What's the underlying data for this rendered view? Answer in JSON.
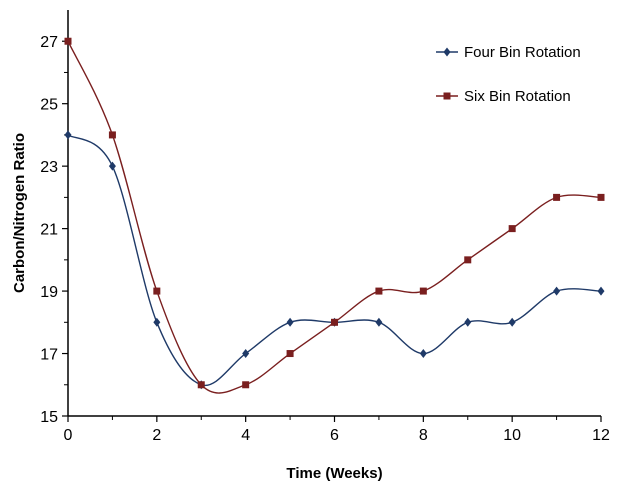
{
  "chart_data": {
    "type": "line",
    "title": "",
    "xlabel": "Time (Weeks)",
    "ylabel": "Carbon/Nitrogen Ratio",
    "xlim": [
      0,
      12
    ],
    "ylim": [
      15,
      28
    ],
    "x_ticks": [
      0,
      2,
      4,
      6,
      8,
      10,
      12
    ],
    "y_ticks": [
      15,
      17,
      19,
      21,
      23,
      25,
      27
    ],
    "grid": false,
    "legend_position": "top-right",
    "x": [
      0,
      1,
      2,
      3,
      4,
      5,
      6,
      7,
      8,
      9,
      10,
      11,
      12
    ],
    "series": [
      {
        "name": "Four Bin Rotation",
        "values": [
          24,
          23,
          18,
          16,
          17,
          18,
          18,
          18,
          17,
          18,
          18,
          19,
          19
        ],
        "color": "#1f3a68",
        "marker": "diamond"
      },
      {
        "name": "Six Bin Rotation",
        "values": [
          27,
          24,
          19,
          16,
          16,
          17,
          18,
          19,
          19,
          20,
          21,
          22,
          22
        ],
        "color": "#7a1f1f",
        "marker": "square"
      }
    ]
  }
}
